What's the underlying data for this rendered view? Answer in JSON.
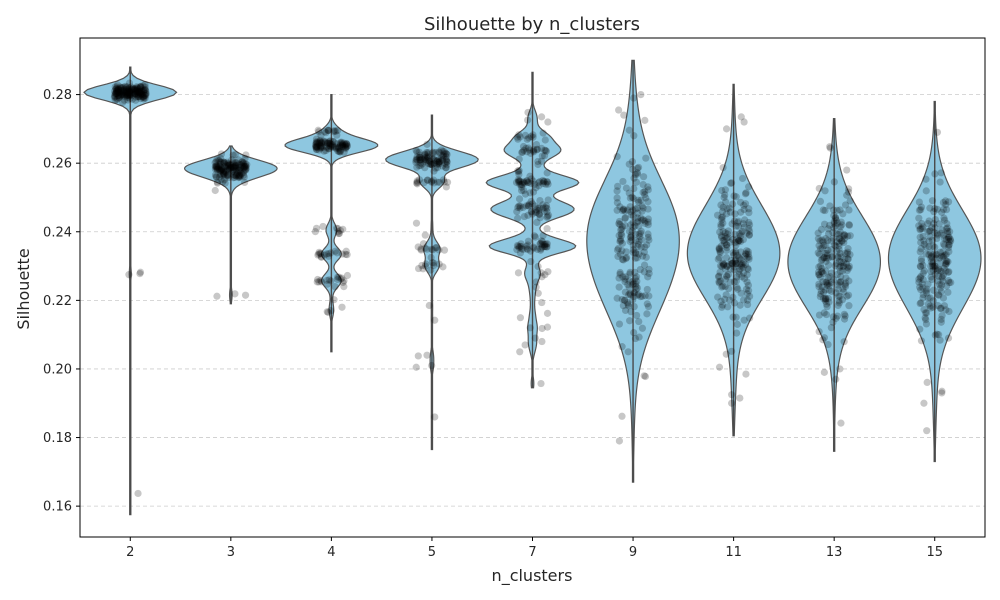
{
  "chart_data": {
    "type": "violin",
    "title": "Silhouette by n_clusters",
    "xlabel": "n_clusters",
    "ylabel": "Silhouette",
    "categories": [
      "2",
      "3",
      "4",
      "5",
      "7",
      "9",
      "11",
      "13",
      "15"
    ],
    "ylim": [
      0.151,
      0.2965
    ],
    "yticks": [
      0.16,
      0.18,
      0.2,
      0.22,
      0.24,
      0.26,
      0.28
    ],
    "ytick_labels": [
      "0.16",
      "0.18",
      "0.20",
      "0.22",
      "0.24",
      "0.26",
      "0.28"
    ],
    "grid": "y-dashed",
    "colors": {
      "violin_fill": "#8ec7e0",
      "violin_edge": "#555555",
      "points": "#000000",
      "grid": "#cccccc"
    },
    "groups": [
      {
        "n_clusters": "2",
        "min": 0.1575,
        "max": 0.288,
        "clusters": [
          {
            "c": 0.2806,
            "sd": 0.0011,
            "n": 160
          }
        ],
        "outliers": [
          0.2278,
          0.2282,
          0.2275,
          0.1637
        ]
      },
      {
        "n_clusters": "3",
        "min": 0.219,
        "max": 0.265,
        "clusters": [
          {
            "c": 0.2583,
            "sd": 0.0018,
            "n": 150
          }
        ],
        "outliers": [
          0.2627,
          0.2624,
          0.2215,
          0.2219,
          0.2212
        ]
      },
      {
        "n_clusters": "4",
        "min": 0.205,
        "max": 0.28,
        "clusters": [
          {
            "c": 0.2652,
            "sd": 0.0009,
            "n": 90
          },
          {
            "c": 0.269,
            "sd": 0.0004,
            "n": 12
          },
          {
            "c": 0.2335,
            "sd": 0.0004,
            "n": 18
          },
          {
            "c": 0.226,
            "sd": 0.0006,
            "n": 18
          },
          {
            "c": 0.2405,
            "sd": 0.0006,
            "n": 8
          }
        ],
        "outliers": [
          0.2165,
          0.217,
          0.2202,
          0.218,
          0.224,
          0.24,
          0.2395,
          0.2167
        ]
      },
      {
        "n_clusters": "5",
        "min": 0.1765,
        "max": 0.274,
        "clusters": [
          {
            "c": 0.261,
            "sd": 0.0015,
            "n": 90
          },
          {
            "c": 0.2545,
            "sd": 0.0005,
            "n": 18
          },
          {
            "c": 0.235,
            "sd": 0.0006,
            "n": 12
          },
          {
            "c": 0.23,
            "sd": 0.0006,
            "n": 10
          }
        ],
        "outliers": [
          0.204,
          0.2038,
          0.201,
          0.2005,
          0.2142,
          0.186,
          0.2185,
          0.2425,
          0.239,
          0.2325,
          0.23
        ]
      },
      {
        "n_clusters": "7",
        "min": 0.1945,
        "max": 0.2865,
        "clusters": [
          {
            "c": 0.2545,
            "sd": 0.0007,
            "n": 30
          },
          {
            "c": 0.2468,
            "sd": 0.0007,
            "n": 22
          },
          {
            "c": 0.2357,
            "sd": 0.0006,
            "n": 25
          },
          {
            "c": 0.264,
            "sd": 0.0006,
            "n": 18
          },
          {
            "c": 0.268,
            "sd": 0.0006,
            "n": 12
          },
          {
            "c": 0.244,
            "sd": 0.012,
            "n": 70
          }
        ],
        "outliers": [
          0.2118,
          0.212,
          0.208,
          0.207,
          0.205,
          0.2122,
          0.209,
          0.2748,
          0.2735,
          0.272
        ]
      },
      {
        "n_clusters": "9",
        "min": 0.167,
        "max": 0.29,
        "clusters": [
          {
            "c": 0.2365,
            "sd": 0.013,
            "n": 200
          }
        ],
        "outliers": [
          0.179,
          0.1862,
          0.1978,
          0.198,
          0.205,
          0.2065,
          0.28,
          0.279,
          0.2755,
          0.274
        ]
      },
      {
        "n_clusters": "11",
        "min": 0.1805,
        "max": 0.283,
        "clusters": [
          {
            "c": 0.234,
            "sd": 0.0105,
            "n": 200
          }
        ],
        "outliers": [
          0.19,
          0.1915,
          0.1925,
          0.1985,
          0.2005,
          0.272,
          0.2735,
          0.27
        ]
      },
      {
        "n_clusters": "13",
        "min": 0.176,
        "max": 0.273,
        "clusters": [
          {
            "c": 0.231,
            "sd": 0.0095,
            "n": 200
          }
        ],
        "outliers": [
          0.1842,
          0.197,
          0.199,
          0.2,
          0.2648,
          0.258
        ]
      },
      {
        "n_clusters": "15",
        "min": 0.173,
        "max": 0.278,
        "clusters": [
          {
            "c": 0.231,
            "sd": 0.0105,
            "n": 200
          }
        ],
        "outliers": [
          0.182,
          0.19,
          0.193,
          0.1935,
          0.269,
          0.2545
        ]
      }
    ]
  }
}
